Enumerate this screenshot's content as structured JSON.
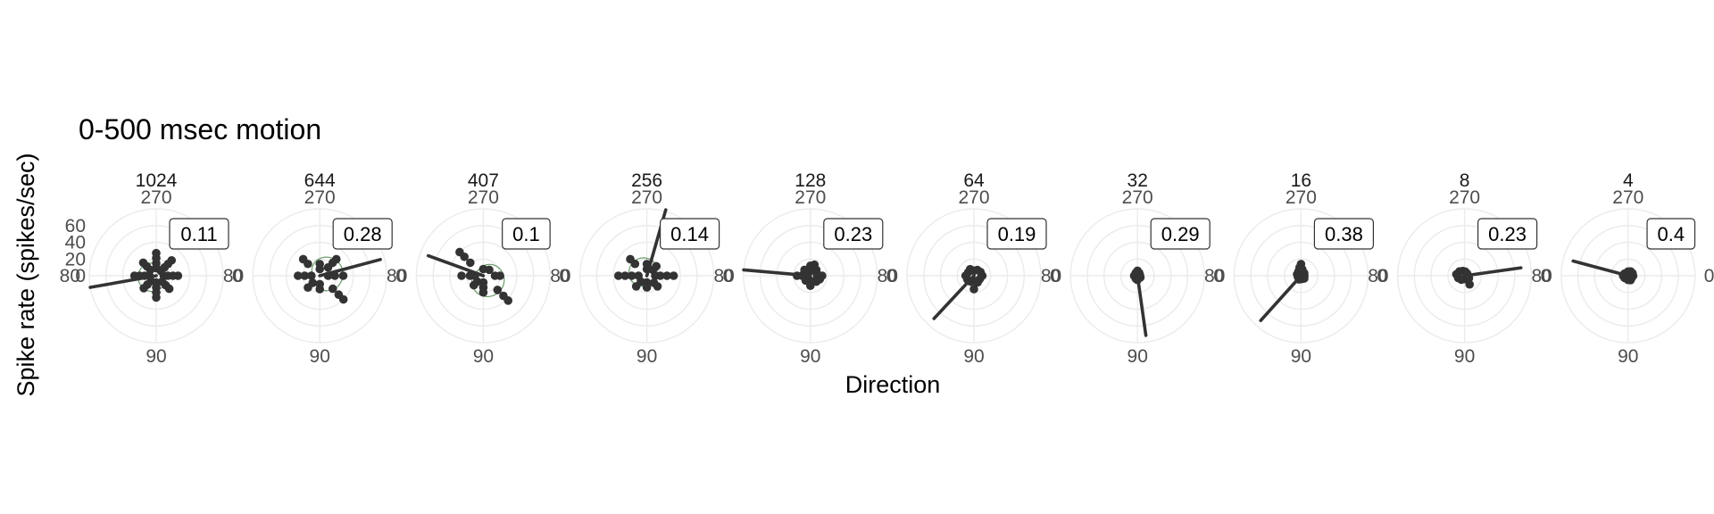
{
  "chart_data": {
    "type": "scatter",
    "title": "0-500 msec motion",
    "xlabel": "Direction",
    "ylabel": "Spike rate (spikes/sec)",
    "coordinate_system": "polar",
    "direction_ticks": [
      "0",
      "90",
      "180",
      "270"
    ],
    "rate_ticks": [
      0,
      20,
      40,
      60
    ],
    "rate_range": [
      0,
      80
    ],
    "colors": {
      "points": "#333333",
      "vector": "#333333",
      "fit": "#6a9a6a",
      "grid": "#ebebeb"
    },
    "panels": [
      {
        "facet": "1024",
        "label": "0.11",
        "vector": {
          "direction": 170,
          "rate": 80
        },
        "fit": {
          "base": 16,
          "amp": 6,
          "pref": 160
        },
        "points": [
          [
            0,
            9
          ],
          [
            0,
            14
          ],
          [
            0,
            20
          ],
          [
            0,
            26
          ],
          [
            45,
            10
          ],
          [
            45,
            16
          ],
          [
            45,
            22
          ],
          [
            90,
            8
          ],
          [
            90,
            14
          ],
          [
            90,
            20
          ],
          [
            90,
            26
          ],
          [
            135,
            9
          ],
          [
            135,
            15
          ],
          [
            135,
            21
          ],
          [
            180,
            8
          ],
          [
            180,
            14
          ],
          [
            180,
            20
          ],
          [
            180,
            26
          ],
          [
            225,
            10
          ],
          [
            225,
            16
          ],
          [
            225,
            22
          ],
          [
            270,
            9
          ],
          [
            270,
            15
          ],
          [
            270,
            21
          ],
          [
            270,
            27
          ],
          [
            315,
            8
          ],
          [
            315,
            14
          ],
          [
            315,
            20
          ],
          [
            315,
            26
          ]
        ]
      },
      {
        "facet": "644",
        "label": "0.28",
        "vector": {
          "direction": 345,
          "rate": 75
        },
        "fit": {
          "base": 18,
          "amp": 10,
          "pref": 345
        },
        "points": [
          [
            0,
            10
          ],
          [
            0,
            18
          ],
          [
            0,
            28
          ],
          [
            45,
            22
          ],
          [
            45,
            32
          ],
          [
            45,
            40
          ],
          [
            90,
            10
          ],
          [
            90,
            16
          ],
          [
            135,
            12
          ],
          [
            135,
            20
          ],
          [
            180,
            10
          ],
          [
            180,
            18
          ],
          [
            180,
            26
          ],
          [
            225,
            20
          ],
          [
            225,
            28
          ],
          [
            270,
            8
          ],
          [
            270,
            14
          ],
          [
            315,
            14
          ],
          [
            315,
            22
          ],
          [
            315,
            28
          ]
        ]
      },
      {
        "facet": "407",
        "label": "0.1",
        "vector": {
          "direction": 200,
          "rate": 70
        },
        "fit": {
          "base": 18,
          "amp": 9,
          "pref": 45
        },
        "points": [
          [
            0,
            14
          ],
          [
            0,
            20
          ],
          [
            45,
            24
          ],
          [
            45,
            34
          ],
          [
            45,
            42
          ],
          [
            90,
            8
          ],
          [
            90,
            14
          ],
          [
            90,
            20
          ],
          [
            135,
            10
          ],
          [
            135,
            16
          ],
          [
            180,
            10
          ],
          [
            180,
            16
          ],
          [
            180,
            26
          ],
          [
            225,
            22
          ],
          [
            225,
            32
          ],
          [
            225,
            40
          ],
          [
            270,
            8
          ],
          [
            315,
            10
          ]
        ]
      },
      {
        "facet": "256",
        "label": "0.14",
        "vector": {
          "direction": 286,
          "rate": 82
        },
        "fit": {
          "base": 16,
          "amp": 7,
          "pref": 225
        },
        "points": [
          [
            0,
            10
          ],
          [
            0,
            16
          ],
          [
            0,
            24
          ],
          [
            0,
            32
          ],
          [
            45,
            12
          ],
          [
            45,
            18
          ],
          [
            90,
            8
          ],
          [
            90,
            14
          ],
          [
            135,
            10
          ],
          [
            135,
            18
          ],
          [
            180,
            10
          ],
          [
            180,
            18
          ],
          [
            180,
            26
          ],
          [
            180,
            34
          ],
          [
            225,
            20
          ],
          [
            225,
            28
          ],
          [
            270,
            8
          ],
          [
            270,
            14
          ],
          [
            315,
            10
          ],
          [
            315,
            16
          ]
        ]
      },
      {
        "facet": "128",
        "label": "0.23",
        "vector": {
          "direction": 185,
          "rate": 80
        },
        "points": [
          [
            0,
            8
          ],
          [
            0,
            14
          ],
          [
            20,
            12
          ],
          [
            45,
            10
          ],
          [
            90,
            6
          ],
          [
            90,
            12
          ],
          [
            135,
            8
          ],
          [
            180,
            10
          ],
          [
            180,
            16
          ],
          [
            200,
            8
          ],
          [
            225,
            10
          ],
          [
            270,
            6
          ],
          [
            270,
            12
          ],
          [
            290,
            14
          ],
          [
            315,
            10
          ],
          [
            335,
            8
          ]
        ]
      },
      {
        "facet": "64",
        "label": "0.19",
        "vector": {
          "direction": 133,
          "rate": 70
        },
        "points": [
          [
            0,
            10
          ],
          [
            30,
            8
          ],
          [
            60,
            9
          ],
          [
            90,
            6
          ],
          [
            90,
            16
          ],
          [
            120,
            8
          ],
          [
            150,
            9
          ],
          [
            180,
            10
          ],
          [
            210,
            8
          ],
          [
            240,
            9
          ],
          [
            270,
            6
          ],
          [
            300,
            8
          ],
          [
            330,
            9
          ]
        ]
      },
      {
        "facet": "32",
        "label": "0.29",
        "vector": {
          "direction": 82,
          "rate": 72
        },
        "points": [
          [
            0,
            3
          ],
          [
            30,
            4
          ],
          [
            60,
            3
          ],
          [
            90,
            5
          ],
          [
            120,
            4
          ],
          [
            150,
            3
          ],
          [
            180,
            4
          ],
          [
            210,
            3
          ],
          [
            240,
            4
          ],
          [
            270,
            6
          ],
          [
            300,
            4
          ],
          [
            330,
            3
          ]
        ]
      },
      {
        "facet": "16",
        "label": "0.38",
        "vector": {
          "direction": 132,
          "rate": 72
        },
        "points": [
          [
            0,
            4
          ],
          [
            40,
            5
          ],
          [
            80,
            4
          ],
          [
            120,
            5
          ],
          [
            160,
            4
          ],
          [
            200,
            5
          ],
          [
            240,
            6
          ],
          [
            260,
            10
          ],
          [
            270,
            14
          ],
          [
            280,
            8
          ],
          [
            320,
            5
          ],
          [
            90,
            4
          ]
        ]
      },
      {
        "facet": "8",
        "label": "0.23",
        "vector": {
          "direction": 352,
          "rate": 68
        },
        "points": [
          [
            0,
            4
          ],
          [
            30,
            6
          ],
          [
            60,
            12
          ],
          [
            90,
            4
          ],
          [
            130,
            6
          ],
          [
            160,
            8
          ],
          [
            190,
            10
          ],
          [
            220,
            8
          ],
          [
            250,
            6
          ],
          [
            280,
            5
          ],
          [
            320,
            4
          ]
        ]
      },
      {
        "facet": "4",
        "label": "0.4",
        "vector": {
          "direction": 195,
          "rate": 68
        },
        "points": [
          [
            0,
            6
          ],
          [
            30,
            5
          ],
          [
            60,
            6
          ],
          [
            90,
            5
          ],
          [
            120,
            4
          ],
          [
            150,
            5
          ],
          [
            180,
            6
          ],
          [
            210,
            5
          ],
          [
            240,
            4
          ],
          [
            270,
            5
          ],
          [
            300,
            6
          ],
          [
            330,
            6
          ]
        ]
      }
    ]
  }
}
